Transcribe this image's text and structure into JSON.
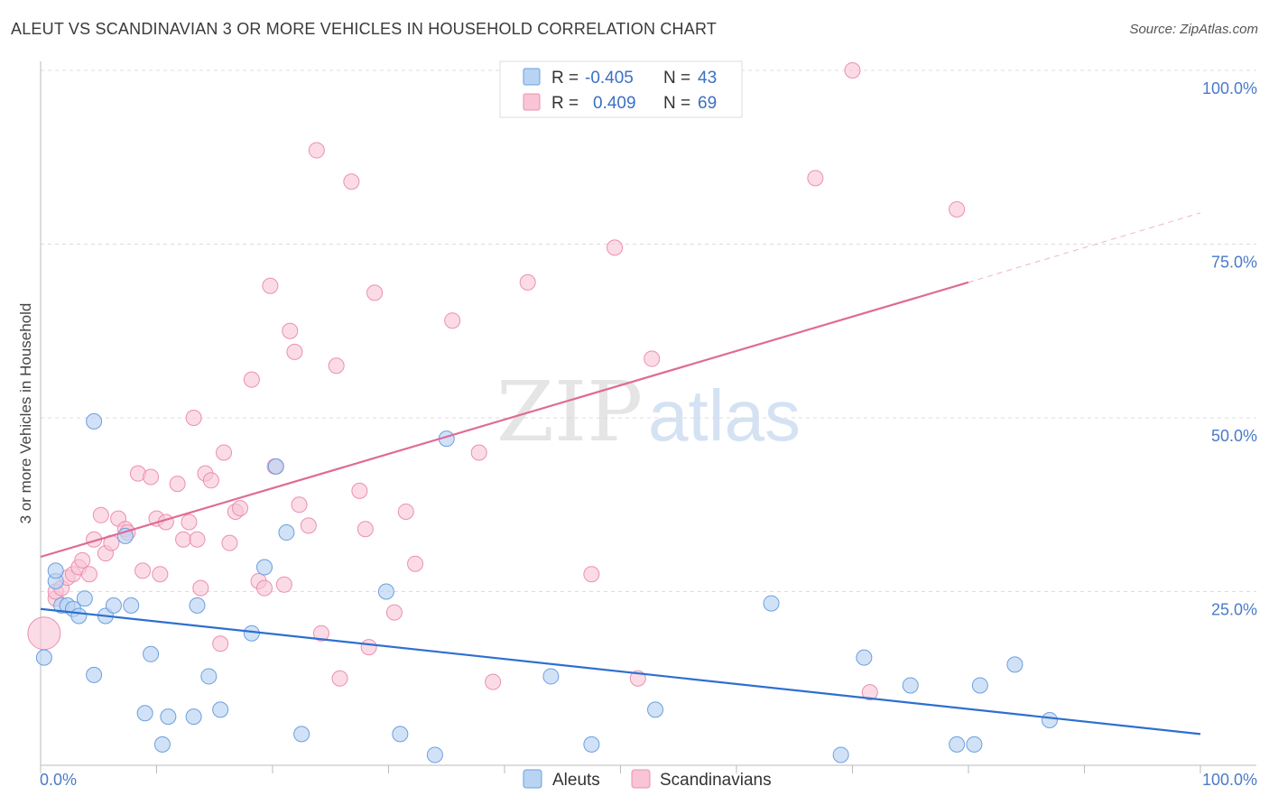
{
  "title": "ALEUT VS SCANDINAVIAN 3 OR MORE VEHICLES IN HOUSEHOLD CORRELATION CHART",
  "source": "Source: ZipAtlas.com",
  "watermark": {
    "zip": "ZIP",
    "atlas": "atlas"
  },
  "legend_top": [
    {
      "r_label": "R =",
      "r_value": "-0.405",
      "n_label": "N =",
      "n_value": "43"
    },
    {
      "r_label": "R =",
      "r_value": "0.409",
      "n_label": "N =",
      "n_value": "69"
    }
  ],
  "colors": {
    "aleut_fill": "#b9d3f3",
    "aleut_stroke": "#6b9fe0",
    "aleut_line": "#2e6fd0",
    "scand_fill": "#f9c4d5",
    "scand_stroke": "#ec8fb0",
    "scand_line": "#e06a97"
  },
  "chart_data": {
    "type": "scatter",
    "title": "ALEUT VS SCANDINAVIAN 3 OR MORE VEHICLES IN HOUSEHOLD CORRELATION CHART",
    "xlabel": "",
    "ylabel": "3 or more Vehicles in Household",
    "xlim": [
      0,
      100
    ],
    "ylim": [
      0,
      100
    ],
    "x_tick_labels": [
      "0.0%",
      "100.0%"
    ],
    "y_tick_labels": [
      "25.0%",
      "50.0%",
      "75.0%",
      "100.0%"
    ],
    "y_ticks": [
      25,
      50,
      75,
      100
    ],
    "grid": true,
    "legend": [
      "Aleuts",
      "Scandinavians"
    ],
    "series": [
      {
        "name": "Aleuts",
        "points": [
          [
            0.3,
            15.5
          ],
          [
            1.3,
            26.5
          ],
          [
            1.3,
            28
          ],
          [
            1.8,
            23
          ],
          [
            2.3,
            23
          ],
          [
            2.8,
            22.5
          ],
          [
            3.3,
            21.5
          ],
          [
            3.8,
            24
          ],
          [
            4.6,
            13
          ],
          [
            4.6,
            49.5
          ],
          [
            5.6,
            21.5
          ],
          [
            6.3,
            23
          ],
          [
            7.3,
            33
          ],
          [
            7.8,
            23
          ],
          [
            9.0,
            7.5
          ],
          [
            9.5,
            16
          ],
          [
            10.5,
            3
          ],
          [
            11.0,
            7
          ],
          [
            13.2,
            7
          ],
          [
            13.5,
            23
          ],
          [
            14.5,
            12.8
          ],
          [
            15.5,
            8
          ],
          [
            18.2,
            19
          ],
          [
            19.3,
            28.5
          ],
          [
            20.3,
            43
          ],
          [
            21.2,
            33.5
          ],
          [
            22.5,
            4.5
          ],
          [
            29.8,
            25
          ],
          [
            31.0,
            4.5
          ],
          [
            34.0,
            1.5
          ],
          [
            35.0,
            47
          ],
          [
            44.0,
            12.8
          ],
          [
            47.5,
            3
          ],
          [
            53.0,
            8
          ],
          [
            63.0,
            23.3
          ],
          [
            69.0,
            1.5
          ],
          [
            71.0,
            15.5
          ],
          [
            75.0,
            11.5
          ],
          [
            79.0,
            3
          ],
          [
            80.5,
            3
          ],
          [
            81.0,
            11.5
          ],
          [
            84.0,
            14.5
          ],
          [
            87.0,
            6.5
          ]
        ],
        "trend": {
          "x": [
            0,
            100
          ],
          "y": [
            22.5,
            4.5
          ]
        }
      },
      {
        "name": "Scandinavians",
        "points": [
          [
            0.3,
            19
          ],
          [
            1.3,
            24
          ],
          [
            1.3,
            25
          ],
          [
            1.8,
            25.5
          ],
          [
            2.3,
            27
          ],
          [
            2.8,
            27.5
          ],
          [
            3.3,
            28.5
          ],
          [
            3.6,
            29.5
          ],
          [
            4.2,
            27.5
          ],
          [
            4.6,
            32.5
          ],
          [
            5.2,
            36
          ],
          [
            5.6,
            30.5
          ],
          [
            6.1,
            32
          ],
          [
            6.7,
            35.5
          ],
          [
            7.3,
            34
          ],
          [
            7.5,
            33.5
          ],
          [
            8.4,
            42
          ],
          [
            8.8,
            28
          ],
          [
            9.5,
            41.5
          ],
          [
            10.0,
            35.5
          ],
          [
            10.3,
            27.5
          ],
          [
            10.8,
            35
          ],
          [
            11.8,
            40.5
          ],
          [
            12.3,
            32.5
          ],
          [
            12.8,
            35
          ],
          [
            13.2,
            50
          ],
          [
            13.5,
            32.5
          ],
          [
            13.8,
            25.5
          ],
          [
            14.2,
            42
          ],
          [
            14.7,
            41
          ],
          [
            15.5,
            17.5
          ],
          [
            15.8,
            45
          ],
          [
            16.3,
            32
          ],
          [
            16.8,
            36.5
          ],
          [
            17.2,
            37
          ],
          [
            18.2,
            55.5
          ],
          [
            18.8,
            26.5
          ],
          [
            19.3,
            25.5
          ],
          [
            19.8,
            69
          ],
          [
            20.2,
            43
          ],
          [
            21.0,
            26
          ],
          [
            21.5,
            62.5
          ],
          [
            21.9,
            59.5
          ],
          [
            22.3,
            37.5
          ],
          [
            23.1,
            34.5
          ],
          [
            23.8,
            88.5
          ],
          [
            24.2,
            19
          ],
          [
            25.5,
            57.5
          ],
          [
            25.8,
            12.5
          ],
          [
            26.8,
            84
          ],
          [
            27.5,
            39.5
          ],
          [
            28.0,
            34
          ],
          [
            28.3,
            17
          ],
          [
            28.8,
            68
          ],
          [
            30.5,
            22
          ],
          [
            31.5,
            36.5
          ],
          [
            32.3,
            29
          ],
          [
            35.5,
            64
          ],
          [
            37.8,
            45
          ],
          [
            39.0,
            12
          ],
          [
            42.0,
            69.5
          ],
          [
            47.5,
            27.5
          ],
          [
            49.5,
            74.5
          ],
          [
            51.5,
            12.5
          ],
          [
            52.7,
            58.5
          ],
          [
            66.8,
            84.5
          ],
          [
            70.0,
            100
          ],
          [
            71.5,
            10.5
          ],
          [
            79.0,
            80
          ]
        ],
        "trend": {
          "x": [
            0,
            80
          ],
          "y": [
            30,
            69.5
          ]
        },
        "trend_extension": {
          "x": [
            80,
            100
          ],
          "y": [
            69.5,
            79.5
          ]
        }
      }
    ]
  }
}
